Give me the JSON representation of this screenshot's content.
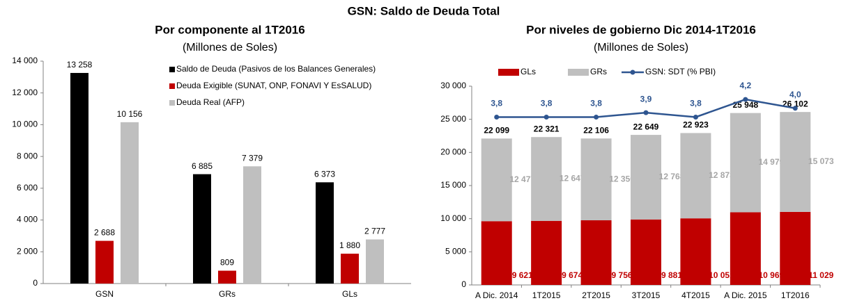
{
  "title": "GSN: Saldo de Deuda Total",
  "chart_data": [
    {
      "type": "bar",
      "title": "Por componente al 1T2016",
      "subtitle": "(Millones de Soles)",
      "categories": [
        "GSN",
        "GRs",
        "GLs"
      ],
      "series": [
        {
          "name": "Saldo de Deuda (Pasivos de los Balances Generales)",
          "color": "#000000",
          "values": [
            13258,
            6885,
            6373
          ],
          "value_labels": [
            "13 258",
            "6 885",
            "6 373"
          ]
        },
        {
          "name": "Deuda Exigible (SUNAT, ONP, FONAVI Y EsSALUD)",
          "color": "#c00000",
          "values": [
            2688,
            809,
            1880
          ],
          "value_labels": [
            "2 688",
            "809",
            "1 880"
          ]
        },
        {
          "name": "Deuda Real (AFP)",
          "color": "#bfbfbf",
          "values": [
            10156,
            7379,
            2777
          ],
          "value_labels": [
            "10 156",
            "7 379",
            "2 777"
          ]
        }
      ],
      "ylim": [
        0,
        14000
      ],
      "yticks": [
        0,
        {
          "value": 2000,
          "label": "2 000"
        },
        {
          "value": 4000,
          "label": "4 000"
        },
        {
          "value": 6000,
          "label": "6 000"
        },
        {
          "value": 8000,
          "label": "8 000"
        },
        {
          "value": 10000,
          "label": "10 000"
        },
        {
          "value": 12000,
          "label": "12 000"
        },
        {
          "value": 14000,
          "label": "14 000"
        }
      ],
      "grid": false,
      "legend": "upper right"
    },
    {
      "type": "stacked_bar_line",
      "title": "Por niveles de gobierno Dic 2014-1T2016",
      "subtitle": "(Millones de Soles)",
      "categories": [
        "A Dic. 2014",
        "1T2015",
        "2T2015",
        "3T2015",
        "4T2015",
        "A Dic. 2015",
        "1T2016"
      ],
      "series": [
        {
          "name": "GLs",
          "color": "#c00000",
          "values": [
            9621,
            9674,
            9756,
            9881,
            10051,
            10969,
            11029
          ],
          "value_labels": [
            "9 621",
            "9 674",
            "9 756",
            "9 881",
            "10 051",
            "10 969",
            "11 029"
          ]
        },
        {
          "name": "GRs",
          "color": "#bfbfbf",
          "values": [
            12477,
            12647,
            12350,
            12768,
            12873,
            14979,
            15073
          ],
          "value_labels": [
            "12 477",
            "12 647",
            "12 350",
            "12 768",
            "12 873",
            "14 979",
            "15 073"
          ]
        },
        {
          "name": "GSN: SDT (% PBI)",
          "color": "#2e5590",
          "axis": "y2",
          "values": [
            3.8,
            3.8,
            3.8,
            3.9,
            3.8,
            4.2,
            4.0
          ],
          "value_labels": [
            "3,8",
            "3,8",
            "3,8",
            "3,9",
            "3,8",
            "4,2",
            "4,0"
          ]
        }
      ],
      "totals": {
        "values": [
          22099,
          22321,
          22106,
          22649,
          22923,
          25948,
          26102
        ],
        "value_labels": [
          "22 099",
          "22 321",
          "22 106",
          "22 649",
          "22 923",
          "25 948",
          "26 102"
        ]
      },
      "ylim": [
        0,
        30000
      ],
      "yticks": [
        0,
        {
          "value": 5000,
          "label": "5 000"
        },
        {
          "value": 10000,
          "label": "10 000"
        },
        {
          "value": 15000,
          "label": "15 000"
        },
        {
          "value": 20000,
          "label": "20 000"
        },
        {
          "value": 25000,
          "label": "25 000"
        },
        {
          "value": 30000,
          "label": "30 000"
        }
      ],
      "y2lim": [
        0,
        4.5
      ],
      "grid": false,
      "legend": "upper left"
    }
  ]
}
